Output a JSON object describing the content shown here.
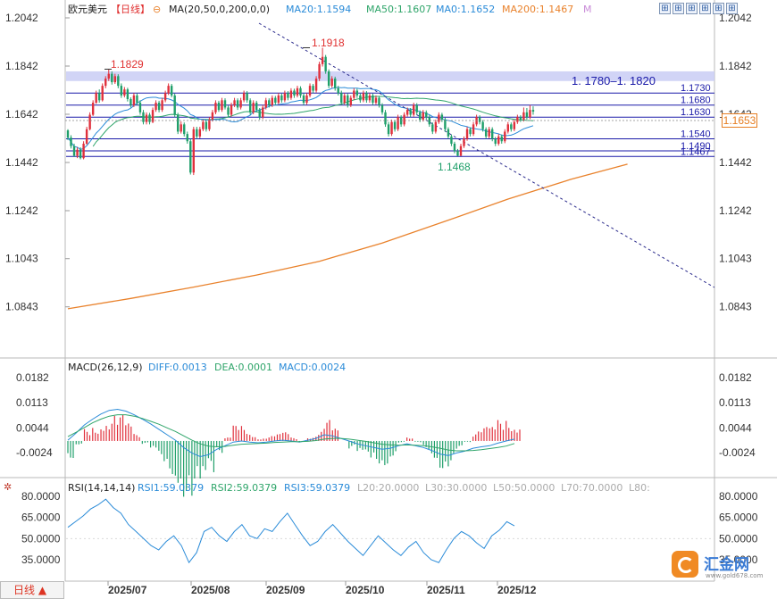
{
  "header": {
    "symbol": "欧元美元",
    "period": "【日线】",
    "ma_indicator": "MA(20,50,0,200,0,0)",
    "ma20": "MA20:1.1594",
    "ma50": "MA50:1.1607",
    "ma0": "MA0:1.1652",
    "ma200": "MA200:1.1467",
    "m_marker": "M"
  },
  "toolbar": {
    "icons": [
      "grid-icon",
      "grid-icon",
      "grid-icon",
      "grid-icon",
      "grid-icon",
      "grid-icon"
    ]
  },
  "price_tag": "1.1653",
  "period_button": "日线 ▲",
  "logo": {
    "name": "汇金网",
    "url": "www.gold678.com"
  },
  "colors": {
    "up": "#e0303c",
    "down": "#1f9f6a",
    "ma20": "#2a8bd8",
    "ma50": "#2fa56a",
    "ma200": "#e9822c",
    "level": "#1a1aa8",
    "zone": "#c9cdf5"
  },
  "chart_data": [
    {
      "type": "candlestick",
      "x_ticks": [
        "2025/07",
        "2025/08",
        "2025/09",
        "2025/10",
        "2025/11",
        "2025/12"
      ],
      "y_ticks": [
        "1.2042",
        "1.1842",
        "1.1642",
        "1.1442",
        "1.1242",
        "1.1043",
        "1.0843"
      ],
      "ylim": [
        1.0743,
        1.2042
      ],
      "annotations": {
        "high_jul": "1.1829",
        "high_sep": "1.1918",
        "low_nov": "1.1468"
      },
      "zone": {
        "low": 1.178,
        "high": 1.182,
        "label": "1. 1780–1. 1820"
      },
      "levels": [
        {
          "value": 1.173,
          "label": "1.1730"
        },
        {
          "value": 1.168,
          "label": "1.1680"
        },
        {
          "value": 1.163,
          "label": "1.1630"
        },
        {
          "value": 1.154,
          "label": "1.1540"
        },
        {
          "value": 1.149,
          "label": "1.1490"
        },
        {
          "value": 1.1467,
          "label": "1.1467"
        }
      ],
      "ma200_path": [
        [
          0,
          1.0835
        ],
        [
          20,
          1.0878
        ],
        [
          40,
          1.0925
        ],
        [
          60,
          1.0975
        ],
        [
          80,
          1.1032
        ],
        [
          100,
          1.1108
        ],
        [
          120,
          1.1198
        ],
        [
          140,
          1.129
        ],
        [
          160,
          1.1372
        ],
        [
          178,
          1.1435
        ]
      ],
      "candles": [
        [
          1.1575,
          1.1545,
          1.158,
          1.1535
        ],
        [
          1.1545,
          1.151,
          1.1555,
          1.15
        ],
        [
          1.151,
          1.147,
          1.152,
          1.1465
        ],
        [
          1.147,
          1.1495,
          1.1505,
          1.146
        ],
        [
          1.1495,
          1.146,
          1.1505,
          1.1455
        ],
        [
          1.146,
          1.152,
          1.153,
          1.1455
        ],
        [
          1.152,
          1.158,
          1.159,
          1.1515
        ],
        [
          1.158,
          1.164,
          1.165,
          1.1575
        ],
        [
          1.164,
          1.169,
          1.17,
          1.1635
        ],
        [
          1.169,
          1.173,
          1.174,
          1.1685
        ],
        [
          1.173,
          1.17,
          1.1745,
          1.169
        ],
        [
          1.17,
          1.176,
          1.177,
          1.1695
        ],
        [
          1.176,
          1.179,
          1.18,
          1.175
        ],
        [
          1.179,
          1.181,
          1.1829,
          1.178
        ],
        [
          1.181,
          1.1775,
          1.182,
          1.1765
        ],
        [
          1.1775,
          1.18,
          1.181,
          1.1768
        ],
        [
          1.18,
          1.176,
          1.1808,
          1.175
        ],
        [
          1.176,
          1.172,
          1.177,
          1.171
        ],
        [
          1.172,
          1.1745,
          1.1755,
          1.1712
        ],
        [
          1.1745,
          1.1705,
          1.1752,
          1.1695
        ],
        [
          1.1705,
          1.168,
          1.1712,
          1.167
        ],
        [
          1.168,
          1.172,
          1.173,
          1.1672
        ],
        [
          1.172,
          1.169,
          1.1728,
          1.168
        ],
        [
          1.169,
          1.165,
          1.17,
          1.164
        ],
        [
          1.165,
          1.161,
          1.166,
          1.16
        ],
        [
          1.161,
          1.164,
          1.165,
          1.16
        ],
        [
          1.164,
          1.161,
          1.1648,
          1.16
        ],
        [
          1.161,
          1.166,
          1.167,
          1.1605
        ],
        [
          1.166,
          1.169,
          1.17,
          1.1652
        ],
        [
          1.169,
          1.166,
          1.1698,
          1.165
        ],
        [
          1.166,
          1.17,
          1.171,
          1.1652
        ],
        [
          1.17,
          1.173,
          1.174,
          1.1692
        ],
        [
          1.173,
          1.176,
          1.177,
          1.1722
        ],
        [
          1.176,
          1.172,
          1.1768,
          1.1712
        ],
        [
          1.172,
          1.164,
          1.1728,
          1.163
        ],
        [
          1.164,
          1.157,
          1.1648,
          1.156
        ],
        [
          1.157,
          1.16,
          1.1612,
          1.1562
        ],
        [
          1.16,
          1.156,
          1.1608,
          1.155
        ],
        [
          1.156,
          1.153,
          1.157,
          1.152
        ],
        [
          1.153,
          1.14,
          1.154,
          1.1392
        ],
        [
          1.14,
          1.158,
          1.159,
          1.139
        ],
        [
          1.158,
          1.155,
          1.159,
          1.154
        ],
        [
          1.155,
          1.158,
          1.159,
          1.1542
        ],
        [
          1.158,
          1.161,
          1.162,
          1.1572
        ],
        [
          1.161,
          1.158,
          1.1618,
          1.157
        ],
        [
          1.158,
          1.162,
          1.163,
          1.1572
        ],
        [
          1.162,
          1.165,
          1.166,
          1.1612
        ],
        [
          1.165,
          1.169,
          1.17,
          1.1642
        ],
        [
          1.169,
          1.166,
          1.1698,
          1.1652
        ],
        [
          1.166,
          1.17,
          1.171,
          1.1652
        ],
        [
          1.17,
          1.167,
          1.1708,
          1.1662
        ],
        [
          1.167,
          1.164,
          1.1678,
          1.1632
        ],
        [
          1.164,
          1.168,
          1.169,
          1.1632
        ],
        [
          1.168,
          1.17,
          1.171,
          1.1672
        ],
        [
          1.17,
          1.167,
          1.1708,
          1.166
        ],
        [
          1.167,
          1.17,
          1.171,
          1.1662
        ],
        [
          1.17,
          1.173,
          1.174,
          1.1692
        ],
        [
          1.173,
          1.17,
          1.1738,
          1.169
        ],
        [
          1.17,
          1.165,
          1.1708,
          1.164
        ],
        [
          1.165,
          1.169,
          1.17,
          1.1642
        ],
        [
          1.169,
          1.166,
          1.1698,
          1.165
        ],
        [
          1.166,
          1.163,
          1.1668,
          1.162
        ],
        [
          1.163,
          1.167,
          1.168,
          1.1622
        ],
        [
          1.167,
          1.17,
          1.171,
          1.1662
        ],
        [
          1.17,
          1.168,
          1.1708,
          1.167
        ],
        [
          1.168,
          1.171,
          1.172,
          1.1672
        ],
        [
          1.171,
          1.169,
          1.1718,
          1.168
        ],
        [
          1.169,
          1.172,
          1.173,
          1.1682
        ],
        [
          1.172,
          1.17,
          1.1728,
          1.169
        ],
        [
          1.17,
          1.173,
          1.174,
          1.1692
        ],
        [
          1.173,
          1.171,
          1.1738,
          1.17
        ],
        [
          1.171,
          1.174,
          1.175,
          1.1702
        ],
        [
          1.174,
          1.172,
          1.1748,
          1.171
        ],
        [
          1.172,
          1.175,
          1.176,
          1.1712
        ],
        [
          1.175,
          1.172,
          1.1758,
          1.171
        ],
        [
          1.172,
          1.169,
          1.1728,
          1.168
        ],
        [
          1.169,
          1.172,
          1.173,
          1.1682
        ],
        [
          1.172,
          1.176,
          1.177,
          1.1712
        ],
        [
          1.176,
          1.174,
          1.1768,
          1.173
        ],
        [
          1.174,
          1.179,
          1.18,
          1.1732
        ],
        [
          1.179,
          1.185,
          1.186,
          1.178
        ],
        [
          1.185,
          1.188,
          1.1918,
          1.184
        ],
        [
          1.188,
          1.182,
          1.1888,
          1.181
        ],
        [
          1.182,
          1.176,
          1.1828,
          1.175
        ],
        [
          1.176,
          1.179,
          1.18,
          1.1752
        ],
        [
          1.179,
          1.175,
          1.1798,
          1.174
        ],
        [
          1.175,
          1.173,
          1.176,
          1.172
        ],
        [
          1.173,
          1.169,
          1.174,
          1.168
        ],
        [
          1.169,
          1.172,
          1.173,
          1.1682
        ],
        [
          1.172,
          1.168,
          1.1728,
          1.167
        ],
        [
          1.168,
          1.171,
          1.172,
          1.1672
        ],
        [
          1.171,
          1.174,
          1.175,
          1.1702
        ],
        [
          1.174,
          1.172,
          1.1748,
          1.171
        ],
        [
          1.172,
          1.17,
          1.1728,
          1.169
        ],
        [
          1.17,
          1.173,
          1.174,
          1.1692
        ],
        [
          1.173,
          1.17,
          1.1738,
          1.169
        ],
        [
          1.17,
          1.172,
          1.173,
          1.169
        ],
        [
          1.172,
          1.169,
          1.1728,
          1.168
        ],
        [
          1.169,
          1.171,
          1.172,
          1.1682
        ],
        [
          1.171,
          1.168,
          1.1718,
          1.167
        ],
        [
          1.168,
          1.165,
          1.1688,
          1.164
        ],
        [
          1.165,
          1.16,
          1.166,
          1.159
        ],
        [
          1.16,
          1.156,
          1.161,
          1.155
        ],
        [
          1.156,
          1.161,
          1.162,
          1.1552
        ],
        [
          1.161,
          1.158,
          1.1618,
          1.157
        ],
        [
          1.158,
          1.163,
          1.164,
          1.1572
        ],
        [
          1.163,
          1.16,
          1.1638,
          1.159
        ],
        [
          1.16,
          1.164,
          1.165,
          1.1592
        ],
        [
          1.164,
          1.166,
          1.167,
          1.1632
        ],
        [
          1.166,
          1.164,
          1.1668,
          1.163
        ],
        [
          1.164,
          1.168,
          1.169,
          1.1632
        ],
        [
          1.168,
          1.165,
          1.1688,
          1.164
        ],
        [
          1.165,
          1.162,
          1.1658,
          1.161
        ],
        [
          1.162,
          1.165,
          1.166,
          1.1612
        ],
        [
          1.165,
          1.163,
          1.1658,
          1.162
        ],
        [
          1.163,
          1.16,
          1.1638,
          1.159
        ],
        [
          1.16,
          1.157,
          1.1608,
          1.156
        ],
        [
          1.157,
          1.161,
          1.162,
          1.1562
        ],
        [
          1.161,
          1.164,
          1.165,
          1.1602
        ],
        [
          1.164,
          1.162,
          1.1648,
          1.161
        ],
        [
          1.162,
          1.158,
          1.1628,
          1.157
        ],
        [
          1.158,
          1.155,
          1.1588,
          1.154
        ],
        [
          1.155,
          1.152,
          1.1558,
          1.151
        ],
        [
          1.152,
          1.149,
          1.1528,
          1.148
        ],
        [
          1.149,
          1.147,
          1.1498,
          1.1468
        ],
        [
          1.147,
          1.151,
          1.152,
          1.1468
        ],
        [
          1.151,
          1.154,
          1.155,
          1.1502
        ],
        [
          1.154,
          1.158,
          1.159,
          1.1532
        ],
        [
          1.158,
          1.156,
          1.1588,
          1.155
        ],
        [
          1.156,
          1.16,
          1.161,
          1.1552
        ],
        [
          1.16,
          1.163,
          1.164,
          1.1592
        ],
        [
          1.163,
          1.161,
          1.1638,
          1.16
        ],
        [
          1.161,
          1.158,
          1.1618,
          1.157
        ],
        [
          1.158,
          1.155,
          1.1588,
          1.154
        ],
        [
          1.155,
          1.158,
          1.159,
          1.1542
        ],
        [
          1.158,
          1.154,
          1.1588,
          1.153
        ],
        [
          1.154,
          1.152,
          1.1548,
          1.151
        ],
        [
          1.152,
          1.155,
          1.156,
          1.1512
        ],
        [
          1.155,
          1.153,
          1.1558,
          1.152
        ],
        [
          1.153,
          1.157,
          1.158,
          1.1522
        ],
        [
          1.157,
          1.16,
          1.161,
          1.1562
        ],
        [
          1.16,
          1.158,
          1.1608,
          1.157
        ],
        [
          1.158,
          1.161,
          1.162,
          1.1572
        ],
        [
          1.161,
          1.163,
          1.164,
          1.1602
        ],
        [
          1.163,
          1.162,
          1.1638,
          1.161
        ],
        [
          1.162,
          1.165,
          1.167,
          1.1612
        ],
        [
          1.165,
          1.163,
          1.1668,
          1.162
        ],
        [
          1.163,
          1.166,
          1.168,
          1.1622
        ],
        [
          1.166,
          1.1653,
          1.1675,
          1.164
        ]
      ]
    },
    {
      "type": "macd",
      "label": "MACD(26,12,9)",
      "diff": "DIFF:0.0013",
      "dea": "DEA:0.0001",
      "macd": "MACD:0.0024",
      "y_ticks": [
        "0.0182",
        "0.0113",
        "0.0044",
        "-0.0024"
      ],
      "ylim": [
        -0.0068,
        0.0206
      ],
      "diff_series": [
        0.001,
        0.003,
        0.0052,
        0.0068,
        0.0082,
        0.0092,
        0.0095,
        0.009,
        0.008,
        0.0068,
        0.0055,
        0.004,
        0.0025,
        0.001,
        -0.001,
        -0.0025,
        -0.0035,
        -0.003,
        -0.0015,
        -0.0005,
        0.0005,
        0.0008,
        0.0005,
        0.0003,
        0.0005,
        0.0008,
        0.001,
        0.0008,
        0.0005,
        0.001,
        0.0015,
        0.0025,
        0.0022,
        0.0015,
        0.0008,
        0.0,
        -0.0005,
        -0.001,
        -0.0015,
        -0.0012,
        -0.0005,
        0.0,
        -0.0005,
        -0.001,
        -0.0018,
        -0.0028,
        -0.0032,
        -0.0025,
        -0.002,
        -0.0012,
        -0.0008,
        -0.0005,
        0.0002,
        0.0008,
        0.0013
      ],
      "dea_series": [
        0.002,
        0.0032,
        0.0045,
        0.0058,
        0.0068,
        0.0076,
        0.008,
        0.008,
        0.0076,
        0.007,
        0.0062,
        0.0054,
        0.0044,
        0.0034,
        0.0022,
        0.001,
        0.0,
        -0.0006,
        -0.0008,
        -0.0007,
        -0.0004,
        -0.0001,
        0.0,
        0.0001,
        0.0002,
        0.0004,
        0.0005,
        0.0006,
        0.0006,
        0.0007,
        0.0009,
        0.0013,
        0.0015,
        0.0015,
        0.0013,
        0.001,
        0.0007,
        0.0003,
        -0.0001,
        -0.0003,
        -0.0004,
        -0.0003,
        -0.0004,
        -0.0005,
        -0.0008,
        -0.0012,
        -0.0017,
        -0.0019,
        -0.0019,
        -0.0018,
        -0.0016,
        -0.0013,
        -0.001,
        -0.0006,
        0.0001
      ]
    },
    {
      "type": "rsi",
      "label": "RSI(14,14,14)",
      "rsi1": "RSI1:59.0379",
      "rsi2": "RSI2:59.0379",
      "rsi3": "RSI3:59.0379",
      "l20": "L20:20.0000",
      "l30": "L30:30.0000",
      "l50": "L50:50.0000",
      "l70": "L70:70.0000",
      "l80": "L80:",
      "y_ticks": [
        "80.0000",
        "65.0000",
        "50.0000",
        "35.0000"
      ],
      "ylim": [
        24,
        84
      ],
      "series": [
        58,
        62,
        66,
        71,
        74,
        78,
        72,
        68,
        60,
        55,
        50,
        45,
        42,
        48,
        52,
        45,
        33,
        40,
        55,
        58,
        52,
        48,
        55,
        60,
        52,
        50,
        57,
        55,
        62,
        68,
        60,
        52,
        45,
        48,
        55,
        60,
        54,
        48,
        43,
        38,
        45,
        52,
        47,
        42,
        38,
        44,
        48,
        40,
        35,
        33,
        42,
        50,
        55,
        52,
        47,
        43,
        52,
        56,
        62,
        59
      ]
    }
  ]
}
